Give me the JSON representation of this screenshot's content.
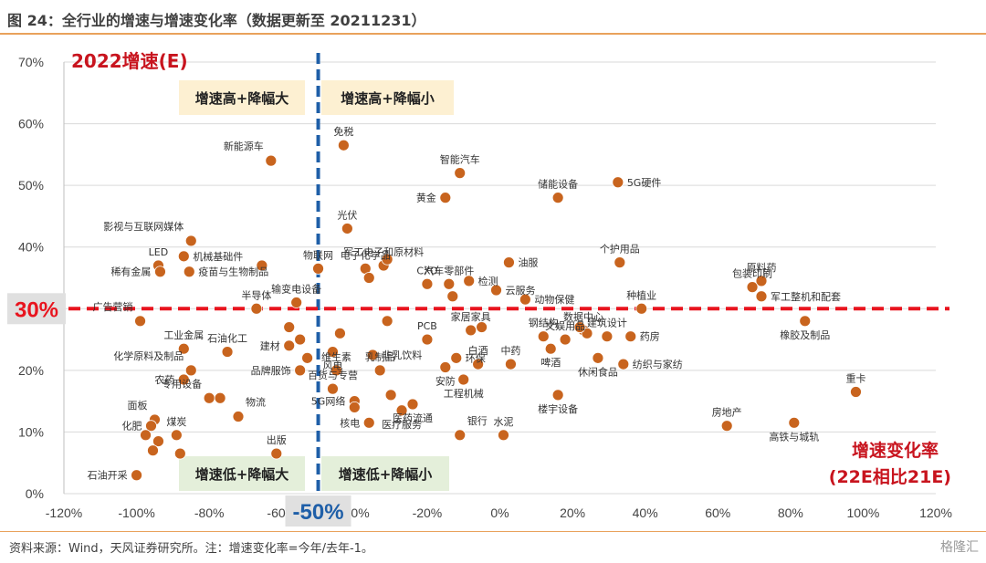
{
  "figure": {
    "title": "图 24：全行业的增速与增速变化率（数据更新至 20211231）",
    "source": "资料来源：Wind，天风证券研究所。注：增速变化率=今年/去年-1。",
    "watermark": "格隆汇"
  },
  "chart_data": {
    "type": "scatter",
    "xlim": [
      -1.2,
      1.2
    ],
    "ylim": [
      0,
      0.7
    ],
    "x_ticks": [
      "-120%",
      "-100%",
      "-80%",
      "-60%",
      "-40%",
      "-20%",
      "0%",
      "20%",
      "40%",
      "60%",
      "80%",
      "100%",
      "120%"
    ],
    "y_ticks": [
      "0%",
      "10%",
      "20%",
      "30%",
      "40%",
      "50%",
      "60%",
      "70%"
    ],
    "y_axis_title": "2022增速(E)",
    "x_axis_title_line1": "增速变化率",
    "x_axis_title_line2": "(22E相比21E)",
    "x_threshold": -0.5,
    "x_threshold_label": "-50%",
    "y_threshold": 0.3,
    "y_threshold_label": "30%",
    "marker_color": "#c8641e",
    "threshold_colors": {
      "vertical": "#1f5fa8",
      "horizontal": "#e8141e"
    },
    "quadrants": [
      {
        "label": "增速高+降幅大"
      },
      {
        "label": "增速高+降幅小"
      },
      {
        "label": "增速低+降幅大"
      },
      {
        "label": "增速低+降幅小"
      }
    ],
    "points": [
      {
        "name": "新能源车",
        "x": -0.63,
        "y": 0.54,
        "lpos": "tl"
      },
      {
        "name": "免税",
        "x": -0.43,
        "y": 0.565,
        "lpos": "t"
      },
      {
        "name": "智能汽车",
        "x": -0.11,
        "y": 0.52,
        "lpos": "t"
      },
      {
        "name": "黄金",
        "x": -0.15,
        "y": 0.48,
        "lpos": "l"
      },
      {
        "name": "储能设备",
        "x": 0.16,
        "y": 0.48,
        "lpos": "t"
      },
      {
        "name": "5G硬件",
        "x": 0.325,
        "y": 0.505,
        "lpos": "r"
      },
      {
        "name": "光伏",
        "x": -0.42,
        "y": 0.43,
        "lpos": "t"
      },
      {
        "name": "影视与互联网媒体",
        "x": -0.85,
        "y": 0.41,
        "lpos": "tl"
      },
      {
        "name": "LED",
        "x": -0.94,
        "y": 0.37,
        "lpos": "t"
      },
      {
        "name": "机械基础件",
        "x": -0.87,
        "y": 0.385,
        "lpos": "r"
      },
      {
        "name": "稀有金属",
        "x": -0.935,
        "y": 0.36,
        "lpos": "l"
      },
      {
        "name": "疫苗与生物制品",
        "x": -0.855,
        "y": 0.36,
        "lpos": "r"
      },
      {
        "name": "物联网",
        "x": -0.5,
        "y": 0.365,
        "lpos": "t"
      },
      {
        "name": "军工电子和原材料",
        "x": -0.32,
        "y": 0.37,
        "lpos": "t"
      },
      {
        "name": "电子化学品",
        "x": -0.37,
        "y": 0.365,
        "lpos": "t"
      },
      {
        "name": "汽车零部件",
        "x": -0.14,
        "y": 0.34,
        "lpos": "t"
      },
      {
        "name": "油服",
        "x": 0.025,
        "y": 0.375,
        "lpos": "r"
      },
      {
        "name": "个护用品",
        "x": 0.33,
        "y": 0.375,
        "lpos": "t"
      },
      {
        "name": "原料药",
        "x": 0.72,
        "y": 0.345,
        "lpos": "t"
      },
      {
        "name": "包装印刷",
        "x": 0.695,
        "y": 0.335,
        "lpos": "t"
      },
      {
        "name": "军工整机和配套",
        "x": 0.72,
        "y": 0.32,
        "lpos": "r"
      },
      {
        "name": "CXO",
        "x": -0.2,
        "y": 0.34,
        "lpos": "t"
      },
      {
        "name": "检测",
        "x": -0.085,
        "y": 0.345,
        "lpos": "r"
      },
      {
        "name": "云服务",
        "x": -0.01,
        "y": 0.33,
        "lpos": "r"
      },
      {
        "name": "动物保健",
        "x": 0.07,
        "y": 0.315,
        "lpos": "r"
      },
      {
        "name": "半导体",
        "x": -0.67,
        "y": 0.3,
        "lpos": "t"
      },
      {
        "name": "输变电设备",
        "x": -0.56,
        "y": 0.31,
        "lpos": "t"
      },
      {
        "name": "广告营销",
        "x": -0.99,
        "y": 0.28,
        "lpos": "tl"
      },
      {
        "name": "数据中心",
        "x": 0.23,
        "y": 0.265,
        "lpos": "t"
      },
      {
        "name": "建筑设计",
        "x": 0.295,
        "y": 0.255,
        "lpos": "t"
      },
      {
        "name": "种植业",
        "x": 0.39,
        "y": 0.3,
        "lpos": "t"
      },
      {
        "name": "橡胶及制品",
        "x": 0.84,
        "y": 0.28,
        "lpos": "b"
      },
      {
        "name": "石油化工",
        "x": -0.75,
        "y": 0.23,
        "lpos": "t"
      },
      {
        "name": "工业金属",
        "x": -0.87,
        "y": 0.235,
        "lpos": "t"
      },
      {
        "name": "建材",
        "x": -0.58,
        "y": 0.24,
        "lpos": "l"
      },
      {
        "name": "风电",
        "x": -0.46,
        "y": 0.23,
        "lpos": "b"
      },
      {
        "name": "PCB",
        "x": -0.2,
        "y": 0.25,
        "lpos": "t"
      },
      {
        "name": "家居家具",
        "x": -0.08,
        "y": 0.265,
        "lpos": "t"
      },
      {
        "name": "钢结构",
        "x": 0.12,
        "y": 0.255,
        "lpos": "t"
      },
      {
        "name": "文娱用品",
        "x": 0.18,
        "y": 0.25,
        "lpos": "t"
      },
      {
        "name": "药房",
        "x": 0.36,
        "y": 0.255,
        "lpos": "r"
      },
      {
        "name": "非乳饮料",
        "x": -0.35,
        "y": 0.225,
        "lpos": "r"
      },
      {
        "name": "环保",
        "x": -0.12,
        "y": 0.22,
        "lpos": "r"
      },
      {
        "name": "白酒",
        "x": -0.06,
        "y": 0.21,
        "lpos": "t"
      },
      {
        "name": "中药",
        "x": 0.03,
        "y": 0.21,
        "lpos": "t"
      },
      {
        "name": "啤酒",
        "x": 0.14,
        "y": 0.235,
        "lpos": "b"
      },
      {
        "name": "纺织与家纺",
        "x": 0.34,
        "y": 0.21,
        "lpos": "r"
      },
      {
        "name": "化学原料及制品",
        "x": -0.85,
        "y": 0.2,
        "lpos": "tl"
      },
      {
        "name": "品牌服饰",
        "x": -0.55,
        "y": 0.2,
        "lpos": "l"
      },
      {
        "name": "维生素",
        "x": -0.45,
        "y": 0.2,
        "lpos": "t"
      },
      {
        "name": "乳制品",
        "x": -0.33,
        "y": 0.2,
        "lpos": "t"
      },
      {
        "name": "安防",
        "x": -0.15,
        "y": 0.205,
        "lpos": "b"
      },
      {
        "name": "休闲食品",
        "x": 0.27,
        "y": 0.22,
        "lpos": "b"
      },
      {
        "name": "农药",
        "x": -0.87,
        "y": 0.185,
        "lpos": "l"
      },
      {
        "name": "专用设备",
        "x": -0.8,
        "y": 0.155,
        "lpos": "tl"
      },
      {
        "name": "百货与专营",
        "x": -0.46,
        "y": 0.17,
        "lpos": "t"
      },
      {
        "name": "工程机械",
        "x": -0.1,
        "y": 0.185,
        "lpos": "b"
      },
      {
        "name": "重卡",
        "x": 0.98,
        "y": 0.165,
        "lpos": "t"
      },
      {
        "name": "面板",
        "x": -0.95,
        "y": 0.12,
        "lpos": "tl"
      },
      {
        "name": "物流",
        "x": -0.72,
        "y": 0.125,
        "lpos": "tr"
      },
      {
        "name": "5G网络",
        "x": -0.4,
        "y": 0.15,
        "lpos": "l"
      },
      {
        "name": "医药流通",
        "x": -0.24,
        "y": 0.145,
        "lpos": "b"
      },
      {
        "name": "楼宇设备",
        "x": 0.16,
        "y": 0.16,
        "lpos": "b"
      },
      {
        "name": "化肥",
        "x": -0.96,
        "y": 0.11,
        "lpos": "l"
      },
      {
        "name": "煤炭",
        "x": -0.89,
        "y": 0.095,
        "lpos": "t"
      },
      {
        "name": "核电",
        "x": -0.36,
        "y": 0.115,
        "lpos": "l"
      },
      {
        "name": "医疗服务",
        "x": -0.27,
        "y": 0.135,
        "lpos": "b"
      },
      {
        "name": "银行",
        "x": -0.11,
        "y": 0.095,
        "lpos": "tr"
      },
      {
        "name": "水泥",
        "x": 0.01,
        "y": 0.095,
        "lpos": "t"
      },
      {
        "name": "房地产",
        "x": 0.625,
        "y": 0.11,
        "lpos": "t"
      },
      {
        "name": "高铁与城轨",
        "x": 0.81,
        "y": 0.115,
        "lpos": "b"
      },
      {
        "name": "出版",
        "x": -0.615,
        "y": 0.065,
        "lpos": "t"
      },
      {
        "name": "石油开采",
        "x": -1.0,
        "y": 0.03,
        "lpos": "l"
      },
      {
        "name": "",
        "x": -0.655,
        "y": 0.37
      },
      {
        "name": "",
        "x": -0.975,
        "y": 0.095
      },
      {
        "name": "",
        "x": -0.94,
        "y": 0.085
      },
      {
        "name": "",
        "x": -0.955,
        "y": 0.07
      },
      {
        "name": "",
        "x": -0.88,
        "y": 0.065
      },
      {
        "name": "",
        "x": -0.77,
        "y": 0.155
      },
      {
        "name": "",
        "x": -0.58,
        "y": 0.27
      },
      {
        "name": "",
        "x": -0.55,
        "y": 0.25
      },
      {
        "name": "",
        "x": -0.53,
        "y": 0.22
      },
      {
        "name": "",
        "x": -0.44,
        "y": 0.26
      },
      {
        "name": "",
        "x": -0.31,
        "y": 0.28
      },
      {
        "name": "",
        "x": -0.4,
        "y": 0.14
      },
      {
        "name": "",
        "x": -0.31,
        "y": 0.38
      },
      {
        "name": "",
        "x": -0.36,
        "y": 0.35
      },
      {
        "name": "",
        "x": -0.13,
        "y": 0.32
      },
      {
        "name": "",
        "x": -0.3,
        "y": 0.16
      },
      {
        "name": "",
        "x": -0.05,
        "y": 0.27
      },
      {
        "name": "",
        "x": 0.24,
        "y": 0.26
      },
      {
        "name": "",
        "x": 0.22,
        "y": 0.27
      }
    ]
  }
}
